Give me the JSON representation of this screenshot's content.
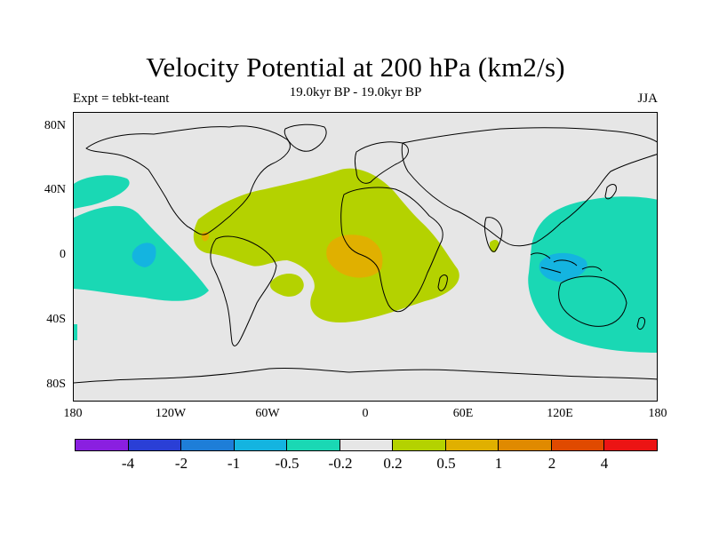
{
  "title": "Velocity Potential at 200 hPa (km2/s)",
  "subtitle": "19.0kyr BP - 19.0kyr BP",
  "left_label": "Expt = tebkt-teant",
  "right_label": "JJA",
  "map": {
    "projection": "cylindrical equidistant",
    "lon_range": [
      -180,
      180
    ],
    "lat_range": [
      -90,
      90
    ],
    "lat_ticks": [
      {
        "label": "80N",
        "lat": 80
      },
      {
        "label": "40N",
        "lat": 40
      },
      {
        "label": "0",
        "lat": 0
      },
      {
        "label": "40S",
        "lat": -40
      },
      {
        "label": "80S",
        "lat": -80
      }
    ],
    "lon_ticks": [
      {
        "label": "180",
        "lon": -180
      },
      {
        "label": "120W",
        "lon": -120
      },
      {
        "label": "60W",
        "lon": -60
      },
      {
        "label": "0",
        "lon": 0
      },
      {
        "label": "60E",
        "lon": 60
      },
      {
        "label": "120E",
        "lon": 120
      },
      {
        "label": "180",
        "lon": 180
      }
    ],
    "background_color": "#e6e6e6",
    "coastline_color": "#000000"
  },
  "colorbar": {
    "colors": [
      "#8a1fe0",
      "#2a3fd6",
      "#1e7ed8",
      "#14b4e0",
      "#1ad8b4",
      "#e6e6e6",
      "#b4d200",
      "#e0b000",
      "#e08a00",
      "#e04a00",
      "#ec1414"
    ],
    "labels": [
      {
        "text": "-4",
        "level": -4
      },
      {
        "text": "-2",
        "level": -2
      },
      {
        "text": "-1",
        "level": -1
      },
      {
        "text": "-0.5",
        "level": -0.5
      },
      {
        "text": "-0.2",
        "level": -0.2
      },
      {
        "text": "0.2",
        "level": 0.2
      },
      {
        "text": "0.5",
        "level": 0.5
      },
      {
        "text": "1",
        "level": 1
      },
      {
        "text": "2",
        "level": 2
      },
      {
        "text": "4",
        "level": 4
      }
    ]
  }
}
